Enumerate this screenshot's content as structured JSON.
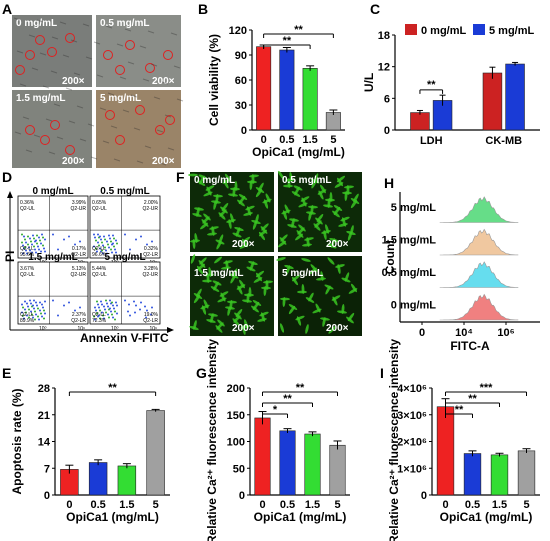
{
  "panel_letters": {
    "A": "A",
    "B": "B",
    "C": "C",
    "D": "D",
    "E": "E",
    "F": "F",
    "G": "G",
    "H": "H",
    "I": "I"
  },
  "panelA": {
    "images": [
      {
        "label": "0 mg/mL",
        "mag": "200×",
        "color": "#7a7d7a"
      },
      {
        "label": "0.5 mg/mL",
        "mag": "200×",
        "color": "#8a8d88"
      },
      {
        "label": "1.5 mg/mL",
        "mag": "200×",
        "color": "#80837d"
      },
      {
        "label": "5 mg/mL",
        "mag": "200×",
        "color": "#9a8468"
      }
    ]
  },
  "panelD": {
    "ylabel": "PI",
    "xlabel": "Annexin V-FITC",
    "plots": [
      {
        "label": "0 mg/mL",
        "UL": "0.36%",
        "UR": "3.99%",
        "LL": "95.6%",
        "LR": "0.17%"
      },
      {
        "label": "0.5 mg/mL",
        "UL": "0.65%",
        "UR": "2.00%",
        "LL": "96.6%",
        "LR": "0.32%"
      },
      {
        "label": "1.5 mg/mL",
        "UL": "3.67%",
        "UR": "5.13%",
        "LL": "89.9%",
        "LR": "2.37%"
      },
      {
        "label": "5 mg/mL",
        "UL": "5.44%",
        "UR": "3.28%",
        "LL": "72.3%",
        "LR": "19.0%"
      }
    ],
    "quad_names": {
      "ul": "Q2-UL",
      "ur": "Q2-UR",
      "ll": "Q2-LL",
      "lr": "Q2-LR"
    },
    "axis_ticks": [
      "10⁰",
      "10⁵",
      "10⁶"
    ]
  },
  "panelF": {
    "images": [
      {
        "label": "0 mg/mL",
        "mag": "200×"
      },
      {
        "label": "0.5 mg/mL",
        "mag": "200×"
      },
      {
        "label": "1.5 mg/mL",
        "mag": "200×"
      },
      {
        "label": "5 mg/mL",
        "mag": "200×"
      }
    ]
  },
  "chart_data": [
    {
      "id": "B",
      "type": "bar",
      "categories": [
        "0",
        "0.5",
        "1.5",
        "5"
      ],
      "values": [
        100,
        96,
        74,
        21
      ],
      "errors": [
        2,
        3,
        3,
        3
      ],
      "colors": [
        "#ee2222",
        "#1a3bd6",
        "#33dd33",
        "#a0a0a0"
      ],
      "xlabel": "OpiCa1 (mg/mL)",
      "ylabel": "Cell viability (%)",
      "ylim": [
        0,
        120
      ],
      "yticks": [
        0,
        30,
        60,
        90,
        120
      ],
      "significance": [
        {
          "from": 0,
          "to": 2,
          "label": "**"
        },
        {
          "from": 0,
          "to": 3,
          "label": "**"
        }
      ]
    },
    {
      "id": "C",
      "type": "bar",
      "groups": [
        "LDH",
        "CK-MB"
      ],
      "series": [
        {
          "name": "0 mg/mL",
          "color": "#cc2222",
          "values": [
            3.3,
            10.8
          ],
          "errors": [
            0.4,
            1.1
          ]
        },
        {
          "name": "5 mg/mL",
          "color": "#1a3bd6",
          "values": [
            5.6,
            12.5
          ],
          "errors": [
            1.0,
            0.3
          ]
        }
      ],
      "ylabel": "U/L",
      "ylim": [
        0,
        18
      ],
      "yticks": [
        0,
        6,
        12,
        18
      ],
      "significance": [
        {
          "group": 0,
          "label": "**"
        }
      ]
    },
    {
      "id": "E",
      "type": "bar",
      "categories": [
        "0",
        "0.5",
        "1.5",
        "5"
      ],
      "values": [
        6.7,
        8.5,
        7.6,
        22.1
      ],
      "errors": [
        1.1,
        0.7,
        0.6,
        0.3
      ],
      "colors": [
        "#ee2222",
        "#1a3bd6",
        "#33dd33",
        "#a0a0a0"
      ],
      "xlabel": "OpiCa1 (mg/mL)",
      "ylabel": "Apoptosis rate (%)",
      "ylim": [
        0,
        28
      ],
      "yticks": [
        0,
        7,
        14,
        21,
        28
      ],
      "significance": [
        {
          "from": 0,
          "to": 3,
          "label": "**"
        }
      ]
    },
    {
      "id": "G",
      "type": "bar",
      "categories": [
        "0",
        "0.5",
        "1.5",
        "5"
      ],
      "values": [
        144,
        120,
        114,
        93
      ],
      "errors": [
        12,
        4,
        4,
        8
      ],
      "colors": [
        "#ee2222",
        "#1a3bd6",
        "#33dd33",
        "#a0a0a0"
      ],
      "xlabel": "OpiCa1 (mg/mL)",
      "ylabel": "Relative Ca²⁺ fluorescence intensity",
      "ylim": [
        0,
        200
      ],
      "yticks": [
        0,
        50,
        100,
        150,
        200
      ],
      "significance": [
        {
          "from": 0,
          "to": 1,
          "label": "*"
        },
        {
          "from": 0,
          "to": 2,
          "label": "**"
        },
        {
          "from": 0,
          "to": 3,
          "label": "**"
        }
      ]
    },
    {
      "id": "H",
      "type": "area",
      "series": [
        {
          "name": "5 mg/mL",
          "color": "#66dd88"
        },
        {
          "name": "1.5 mg/mL",
          "color": "#f0c8a0"
        },
        {
          "name": "0.5 mg/mL",
          "color": "#66ddee"
        },
        {
          "name": "0 mg/mL",
          "color": "#f08080"
        }
      ],
      "xlabel": "FITC-A",
      "ylabel": "Count",
      "xticks": [
        "0",
        "10⁴",
        "10⁶"
      ]
    },
    {
      "id": "I",
      "type": "bar",
      "categories": [
        "0",
        "0.5",
        "1.5",
        "5"
      ],
      "values": [
        3300000,
        1550000,
        1500000,
        1650000
      ],
      "errors": [
        300000,
        100000,
        60000,
        80000
      ],
      "colors": [
        "#ee2222",
        "#1a3bd6",
        "#33dd33",
        "#a0a0a0"
      ],
      "xlabel": "OpiCa1 (mg/mL)",
      "ylabel": "Relative Ca²⁺ fluorescence intensity",
      "ylim": [
        0,
        4000000
      ],
      "yticks": [
        0,
        1000000,
        2000000,
        3000000,
        4000000
      ],
      "ytick_labels": [
        "0",
        "1×10⁶",
        "2×10⁶",
        "3×10⁶",
        "4×10⁶"
      ],
      "significance": [
        {
          "from": 0,
          "to": 1,
          "label": "**"
        },
        {
          "from": 0,
          "to": 2,
          "label": "**"
        },
        {
          "from": 0,
          "to": 3,
          "label": "***"
        }
      ]
    }
  ]
}
